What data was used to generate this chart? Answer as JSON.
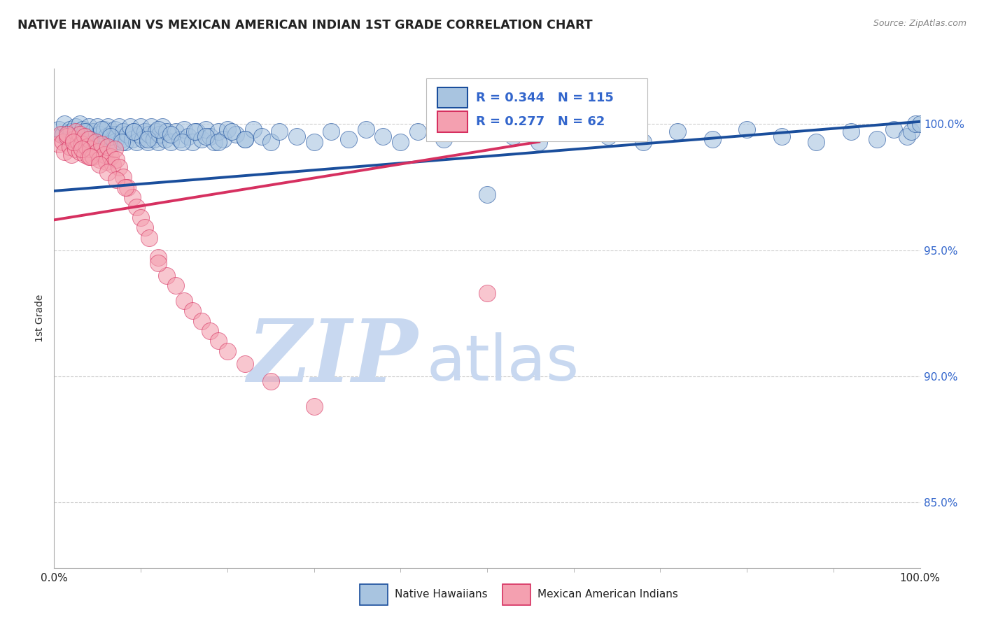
{
  "title": "NATIVE HAWAIIAN VS MEXICAN AMERICAN INDIAN 1ST GRADE CORRELATION CHART",
  "source": "Source: ZipAtlas.com",
  "ylabel": "1st Grade",
  "ytick_labels": [
    "85.0%",
    "90.0%",
    "95.0%",
    "100.0%"
  ],
  "ytick_values": [
    0.85,
    0.9,
    0.95,
    1.0
  ],
  "xrange": [
    0.0,
    1.0
  ],
  "yrange": [
    0.824,
    1.022
  ],
  "legend_label1": "Native Hawaiians",
  "legend_label2": "Mexican American Indians",
  "r1": 0.344,
  "n1": 115,
  "r2": 0.277,
  "n2": 62,
  "color_blue": "#A8C4E0",
  "color_pink": "#F4A0B0",
  "trendline_blue": "#1A4E9C",
  "trendline_pink": "#D63060",
  "watermark_zip": "ZIP",
  "watermark_atlas": "atlas",
  "watermark_color_zip": "#C8D8F0",
  "watermark_color_atlas": "#C8D8F0",
  "blue_scatter_x": [
    0.005,
    0.01,
    0.012,
    0.015,
    0.018,
    0.02,
    0.022,
    0.025,
    0.028,
    0.03,
    0.03,
    0.033,
    0.035,
    0.038,
    0.04,
    0.04,
    0.042,
    0.045,
    0.048,
    0.05,
    0.052,
    0.055,
    0.058,
    0.06,
    0.062,
    0.065,
    0.068,
    0.07,
    0.07,
    0.072,
    0.075,
    0.078,
    0.08,
    0.082,
    0.085,
    0.088,
    0.09,
    0.092,
    0.095,
    0.098,
    0.1,
    0.102,
    0.105,
    0.108,
    0.11,
    0.112,
    0.115,
    0.118,
    0.12,
    0.122,
    0.125,
    0.128,
    0.13,
    0.135,
    0.14,
    0.145,
    0.15,
    0.155,
    0.16,
    0.165,
    0.17,
    0.175,
    0.18,
    0.185,
    0.19,
    0.195,
    0.2,
    0.21,
    0.22,
    0.23,
    0.24,
    0.25,
    0.26,
    0.28,
    0.3,
    0.32,
    0.34,
    0.36,
    0.38,
    0.4,
    0.42,
    0.45,
    0.48,
    0.5,
    0.53,
    0.56,
    0.6,
    0.64,
    0.68,
    0.72,
    0.76,
    0.8,
    0.84,
    0.88,
    0.92,
    0.95,
    0.97,
    0.985,
    0.99,
    0.995,
    1.0,
    0.035,
    0.042,
    0.055,
    0.065,
    0.078,
    0.092,
    0.108,
    0.12,
    0.135,
    0.148,
    0.162,
    0.175,
    0.19,
    0.205,
    0.22
  ],
  "blue_scatter_y": [
    0.998,
    0.996,
    1.0,
    0.994,
    0.998,
    0.997,
    0.995,
    0.999,
    0.993,
    0.996,
    1.0,
    0.998,
    0.994,
    0.997,
    0.999,
    0.995,
    0.993,
    0.997,
    0.995,
    0.999,
    0.996,
    0.993,
    0.998,
    0.995,
    0.999,
    0.996,
    0.994,
    0.998,
    0.993,
    0.996,
    0.999,
    0.994,
    0.997,
    0.993,
    0.996,
    0.999,
    0.994,
    0.997,
    0.993,
    0.996,
    0.999,
    0.994,
    0.997,
    0.993,
    0.996,
    0.999,
    0.994,
    0.997,
    0.993,
    0.996,
    0.999,
    0.994,
    0.997,
    0.993,
    0.997,
    0.994,
    0.998,
    0.995,
    0.993,
    0.997,
    0.994,
    0.998,
    0.995,
    0.993,
    0.997,
    0.994,
    0.998,
    0.996,
    0.994,
    0.998,
    0.995,
    0.993,
    0.997,
    0.995,
    0.993,
    0.997,
    0.994,
    0.998,
    0.995,
    0.993,
    0.997,
    0.994,
    0.998,
    0.972,
    0.995,
    0.993,
    0.997,
    0.995,
    0.993,
    0.997,
    0.994,
    0.998,
    0.995,
    0.993,
    0.997,
    0.994,
    0.998,
    0.995,
    0.997,
    1.0,
    1.0,
    0.997,
    0.994,
    0.998,
    0.995,
    0.993,
    0.997,
    0.994,
    0.998,
    0.996,
    0.993,
    0.997,
    0.995,
    0.993,
    0.997,
    0.994
  ],
  "pink_scatter_x": [
    0.005,
    0.008,
    0.01,
    0.012,
    0.015,
    0.018,
    0.02,
    0.022,
    0.025,
    0.025,
    0.028,
    0.03,
    0.03,
    0.032,
    0.035,
    0.035,
    0.038,
    0.04,
    0.04,
    0.042,
    0.045,
    0.048,
    0.05,
    0.052,
    0.055,
    0.058,
    0.06,
    0.062,
    0.065,
    0.068,
    0.07,
    0.072,
    0.075,
    0.08,
    0.085,
    0.09,
    0.095,
    0.1,
    0.105,
    0.11,
    0.12,
    0.13,
    0.14,
    0.15,
    0.16,
    0.17,
    0.18,
    0.19,
    0.2,
    0.22,
    0.25,
    0.3,
    0.015,
    0.022,
    0.032,
    0.042,
    0.052,
    0.062,
    0.072,
    0.082,
    0.5,
    0.12
  ],
  "pink_scatter_y": [
    0.992,
    0.996,
    0.993,
    0.989,
    0.995,
    0.991,
    0.988,
    0.994,
    0.99,
    0.997,
    0.993,
    0.989,
    0.996,
    0.992,
    0.988,
    0.995,
    0.991,
    0.987,
    0.994,
    0.99,
    0.987,
    0.993,
    0.989,
    0.986,
    0.992,
    0.988,
    0.985,
    0.991,
    0.987,
    0.984,
    0.99,
    0.986,
    0.983,
    0.979,
    0.975,
    0.971,
    0.967,
    0.963,
    0.959,
    0.955,
    0.947,
    0.94,
    0.936,
    0.93,
    0.926,
    0.922,
    0.918,
    0.914,
    0.91,
    0.905,
    0.898,
    0.888,
    0.996,
    0.993,
    0.99,
    0.987,
    0.984,
    0.981,
    0.978,
    0.975,
    0.933,
    0.945
  ],
  "blue_trend_x0": 0.0,
  "blue_trend_y0": 0.9735,
  "blue_trend_x1": 1.0,
  "blue_trend_y1": 1.001,
  "pink_trend_x0": 0.0,
  "pink_trend_y0": 0.962,
  "pink_trend_x1": 0.56,
  "pink_trend_y1": 0.993,
  "xtick_positions": [
    0.0,
    1.0
  ],
  "xtick_labels": [
    "0.0%",
    "100.0%"
  ]
}
